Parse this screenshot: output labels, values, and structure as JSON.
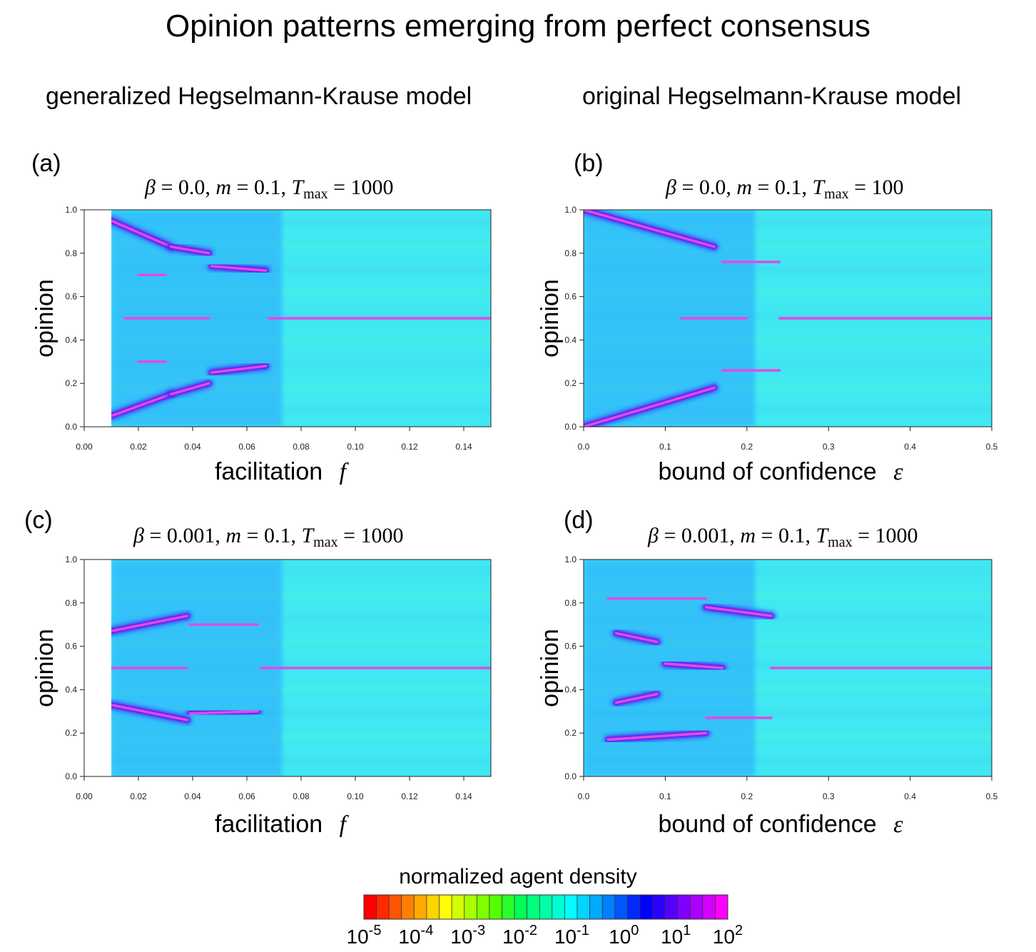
{
  "title": "Opinion patterns emerging from perfect consensus",
  "column_headers": {
    "left": "generalized Hegselmann-Krause model",
    "right": "original Hegselmann-Krause model"
  },
  "colorbar": {
    "title": "normalized agent density",
    "labels": [
      "10-5",
      "10-4",
      "10-3",
      "10-2",
      "10-1",
      "100",
      "101",
      "102"
    ],
    "label_base": "10",
    "label_exponents": [
      "-5",
      "-4",
      "-3",
      "-2",
      "-1",
      "0",
      "1",
      "2"
    ],
    "colors": [
      "#ff0000",
      "#ff2a00",
      "#ff5500",
      "#ff7f00",
      "#ffaa00",
      "#ffd400",
      "#ffff00",
      "#d4ff00",
      "#aaff00",
      "#7fff00",
      "#55ff00",
      "#2aff2a",
      "#00ff55",
      "#00ff7f",
      "#00ffaa",
      "#00ffd4",
      "#00ffff",
      "#00d4ff",
      "#00aaff",
      "#007fff",
      "#0055ff",
      "#002aff",
      "#0000ff",
      "#2a00ff",
      "#5500ff",
      "#7f00ff",
      "#aa00ff",
      "#d400ff",
      "#ff00ff"
    ]
  },
  "chart_data": [
    {
      "type": "heatmap",
      "panel": "(a)",
      "params": {
        "beta": "0.0",
        "m": "0.1",
        "Tmax": "1000"
      },
      "xlabel": "facilitation",
      "xsymbol": "f",
      "ylabel": "opinion",
      "xlim": [
        0.0,
        0.15
      ],
      "ylim": [
        0.0,
        1.0
      ],
      "xticks": [
        "0.00",
        "0.02",
        "0.04",
        "0.06",
        "0.08",
        "0.10",
        "0.12",
        "0.14"
      ],
      "yticks": [
        "0.0",
        "0.2",
        "0.4",
        "0.6",
        "0.8",
        "1.0"
      ],
      "data_start_x": 0.01,
      "clusters": [
        {
          "x": [
            0.01,
            0.032
          ],
          "y": [
            0.95,
            0.83
          ]
        },
        {
          "x": [
            0.032,
            0.046
          ],
          "y": [
            0.83,
            0.8
          ]
        },
        {
          "x": [
            0.047,
            0.067
          ],
          "y": [
            0.74,
            0.72
          ]
        },
        {
          "x": [
            0.02,
            0.03
          ],
          "y": [
            0.7,
            0.7
          ]
        },
        {
          "x": [
            0.015,
            0.03
          ],
          "y": [
            0.5,
            0.5
          ]
        },
        {
          "x": [
            0.03,
            0.046
          ],
          "y": [
            0.5,
            0.5
          ]
        },
        {
          "x": [
            0.068,
            0.15
          ],
          "y": [
            0.5,
            0.5
          ]
        },
        {
          "x": [
            0.02,
            0.03
          ],
          "y": [
            0.3,
            0.3
          ]
        },
        {
          "x": [
            0.01,
            0.032
          ],
          "y": [
            0.05,
            0.15
          ]
        },
        {
          "x": [
            0.032,
            0.046
          ],
          "y": [
            0.15,
            0.2
          ]
        },
        {
          "x": [
            0.047,
            0.067
          ],
          "y": [
            0.25,
            0.28
          ]
        }
      ]
    },
    {
      "type": "heatmap",
      "panel": "(b)",
      "params": {
        "beta": "0.0",
        "m": "0.1",
        "Tmax": "100"
      },
      "xlabel": "bound of confidence",
      "xsymbol": "ε",
      "ylabel": "opinion",
      "xlim": [
        0.0,
        0.5
      ],
      "ylim": [
        0.0,
        1.0
      ],
      "xticks": [
        "0.0",
        "0.1",
        "0.2",
        "0.3",
        "0.4",
        "0.5"
      ],
      "yticks": [
        "0.0",
        "0.2",
        "0.4",
        "0.6",
        "0.8",
        "1.0"
      ],
      "data_start_x": 0.0,
      "clusters": [
        {
          "x": [
            0.0,
            0.16
          ],
          "y": [
            1.0,
            0.83
          ]
        },
        {
          "x": [
            0.17,
            0.24
          ],
          "y": [
            0.76,
            0.76
          ]
        },
        {
          "x": [
            0.12,
            0.2
          ],
          "y": [
            0.5,
            0.5
          ]
        },
        {
          "x": [
            0.24,
            0.5
          ],
          "y": [
            0.5,
            0.5
          ]
        },
        {
          "x": [
            0.0,
            0.16
          ],
          "y": [
            0.0,
            0.18
          ]
        },
        {
          "x": [
            0.17,
            0.24
          ],
          "y": [
            0.26,
            0.26
          ]
        }
      ]
    },
    {
      "type": "heatmap",
      "panel": "(c)",
      "params": {
        "beta": "0.001",
        "m": "0.1",
        "Tmax": "1000"
      },
      "xlabel": "facilitation",
      "xsymbol": "f",
      "ylabel": "opinion",
      "xlim": [
        0.0,
        0.15
      ],
      "ylim": [
        0.0,
        1.0
      ],
      "xticks": [
        "0.00",
        "0.02",
        "0.04",
        "0.06",
        "0.08",
        "0.10",
        "0.12",
        "0.14"
      ],
      "yticks": [
        "0.0",
        "0.2",
        "0.4",
        "0.6",
        "0.8",
        "1.0"
      ],
      "data_start_x": 0.01,
      "clusters": [
        {
          "x": [
            0.01,
            0.038
          ],
          "y": [
            0.67,
            0.74
          ]
        },
        {
          "x": [
            0.039,
            0.064
          ],
          "y": [
            0.7,
            0.7
          ]
        },
        {
          "x": [
            0.01,
            0.038
          ],
          "y": [
            0.5,
            0.5
          ]
        },
        {
          "x": [
            0.065,
            0.15
          ],
          "y": [
            0.5,
            0.5
          ]
        },
        {
          "x": [
            0.01,
            0.038
          ],
          "y": [
            0.33,
            0.26
          ]
        },
        {
          "x": [
            0.039,
            0.064
          ],
          "y": [
            0.29,
            0.3
          ]
        }
      ]
    },
    {
      "type": "heatmap",
      "panel": "(d)",
      "params": {
        "beta": "0.001",
        "m": "0.1",
        "Tmax": "1000"
      },
      "xlabel": "bound of confidence",
      "xsymbol": "ε",
      "ylabel": "opinion",
      "xlim": [
        0.0,
        0.5
      ],
      "ylim": [
        0.0,
        1.0
      ],
      "xticks": [
        "0.0",
        "0.1",
        "0.2",
        "0.3",
        "0.4",
        "0.5"
      ],
      "yticks": [
        "0.0",
        "0.2",
        "0.4",
        "0.6",
        "0.8",
        "1.0"
      ],
      "data_start_x": 0.0,
      "clusters": [
        {
          "x": [
            0.03,
            0.15
          ],
          "y": [
            0.82,
            0.82
          ]
        },
        {
          "x": [
            0.15,
            0.23
          ],
          "y": [
            0.78,
            0.74
          ]
        },
        {
          "x": [
            0.04,
            0.09
          ],
          "y": [
            0.66,
            0.62
          ]
        },
        {
          "x": [
            0.1,
            0.17
          ],
          "y": [
            0.52,
            0.5
          ]
        },
        {
          "x": [
            0.23,
            0.5
          ],
          "y": [
            0.5,
            0.5
          ]
        },
        {
          "x": [
            0.04,
            0.09
          ],
          "y": [
            0.34,
            0.38
          ]
        },
        {
          "x": [
            0.03,
            0.15
          ],
          "y": [
            0.17,
            0.2
          ]
        },
        {
          "x": [
            0.15,
            0.23
          ],
          "y": [
            0.27,
            0.27
          ]
        }
      ]
    }
  ]
}
